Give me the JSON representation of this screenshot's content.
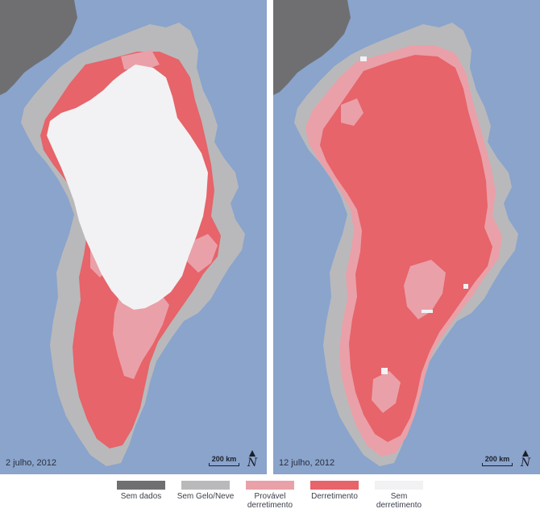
{
  "colors": {
    "ocean": "#8aa4cc",
    "no_data": "#6f6f72",
    "no_ice": "#b9b9bb",
    "probable_melt": "#eaa0a8",
    "melt": "#e6646a",
    "no_melt": "#f2f2f4"
  },
  "panels": [
    {
      "id": "left",
      "date": "2 julho, 2012",
      "scale": "200 km",
      "north": "N"
    },
    {
      "id": "right",
      "date": "12 julho, 2012",
      "scale": "200 km",
      "north": "N"
    }
  ],
  "legend": [
    {
      "key": "no_data",
      "label": "Sem dados"
    },
    {
      "key": "no_ice",
      "label": "Sem Gelo/Neve"
    },
    {
      "key": "probable_melt",
      "label": "Provável\nderretimento"
    },
    {
      "key": "melt",
      "label": "Derretimento"
    },
    {
      "key": "no_melt",
      "label": "Sem\nderretimento"
    }
  ]
}
